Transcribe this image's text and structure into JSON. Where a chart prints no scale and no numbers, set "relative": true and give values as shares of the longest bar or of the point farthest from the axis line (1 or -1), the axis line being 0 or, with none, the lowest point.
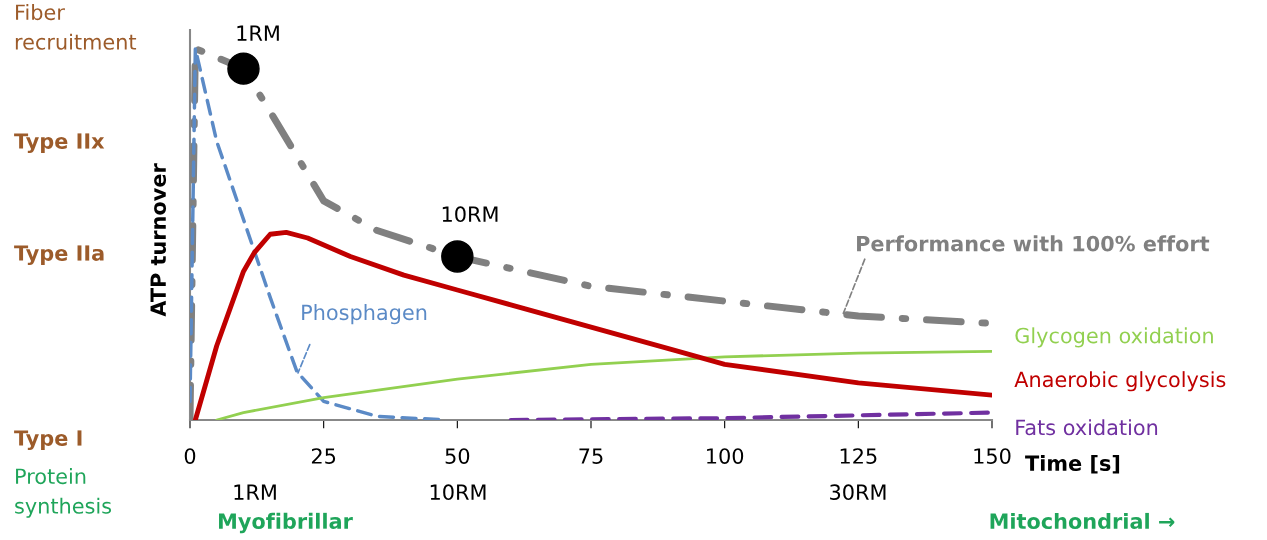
{
  "chart_data": {
    "type": "line",
    "relative": true,
    "xlabel": "Time [s]",
    "ylabel": "ATP turnover",
    "xlim": [
      0,
      150
    ],
    "xticks": [
      0,
      25,
      50,
      75,
      100,
      125,
      150
    ],
    "grid": false,
    "series": [
      {
        "name": "Performance with 100% effort",
        "color": "#808080",
        "line_style": "dashdot",
        "x": [
          0,
          1,
          10,
          15,
          25,
          35,
          50,
          75,
          100,
          125,
          150
        ],
        "values": [
          0,
          1.0,
          0.946,
          0.83,
          0.59,
          0.51,
          0.44,
          0.36,
          0.32,
          0.28,
          0.26
        ]
      },
      {
        "name": "Phosphagen",
        "color": "#5b8ac6",
        "line_style": "dashed",
        "x": [
          0,
          1,
          5,
          10,
          15,
          20,
          25,
          35,
          48
        ],
        "values": [
          0.05,
          1.0,
          0.75,
          0.54,
          0.33,
          0.13,
          0.05,
          0.01,
          0
        ]
      },
      {
        "name": "Glycogen oxidation",
        "color": "#92d050",
        "line_style": "solid",
        "x": [
          5,
          10,
          25,
          50,
          75,
          100,
          125,
          150
        ],
        "values": [
          0,
          0.02,
          0.06,
          0.11,
          0.15,
          0.17,
          0.18,
          0.185
        ]
      },
      {
        "name": "Anaerobic glycolysis",
        "color": "#c00000",
        "line_style": "solid",
        "x": [
          1,
          5,
          10,
          12,
          15,
          18,
          22,
          30,
          40,
          50,
          60,
          75,
          90,
          100,
          125,
          150
        ],
        "values": [
          0,
          0.2,
          0.4,
          0.45,
          0.5,
          0.505,
          0.49,
          0.44,
          0.39,
          0.35,
          0.31,
          0.25,
          0.19,
          0.15,
          0.1,
          0.067
        ]
      },
      {
        "name": "Fats oxidation",
        "color": "#7030a0",
        "line_style": "dashed",
        "x": [
          60,
          100,
          150
        ],
        "values": [
          0,
          0.005,
          0.02
        ]
      },
      {
        "type": "scatter",
        "color": "#000000",
        "marker": "circle",
        "x": [
          10,
          50
        ],
        "values": [
          0.946,
          0.44
        ]
      }
    ],
    "annotations": [
      "Fiber\nrecruitment",
      "Type IIx",
      "Type IIa",
      "Type I",
      "Protein\nsynthesis",
      "Myofibrillar",
      "Mitochondrial →",
      "1RM",
      "10RM",
      "30RM",
      "1RM",
      "10RM"
    ]
  }
}
